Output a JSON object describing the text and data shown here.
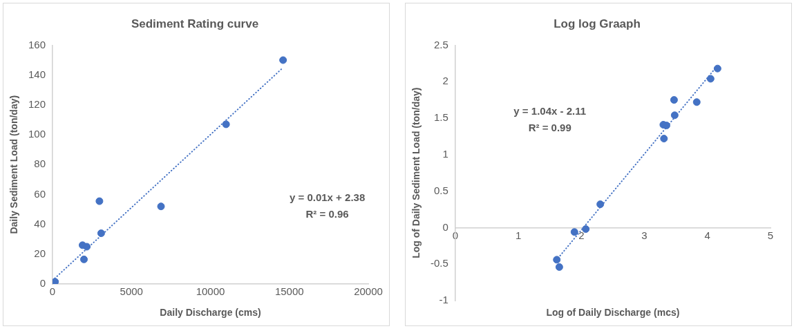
{
  "chart_data": [
    {
      "type": "scatter",
      "title": "Sediment Rating curve",
      "xlabel": "Daily Discharge (cms)",
      "ylabel": "Daily Sediment Load (ton/day)",
      "xlim": [
        0,
        20000
      ],
      "xticks": [
        0,
        5000,
        10000,
        15000,
        20000
      ],
      "ylim": [
        0,
        160
      ],
      "yticks": [
        0,
        20,
        40,
        60,
        80,
        100,
        120,
        140,
        160
      ],
      "grid": false,
      "legend": false,
      "series": [
        {
          "type": "scatter",
          "color": "#4472c4",
          "marker": "circle",
          "x": [
            160,
            1900,
            2170,
            1990,
            2970,
            3080,
            6870,
            10990,
            14600
          ],
          "values": [
            1.5,
            26,
            25,
            16.5,
            55.5,
            34,
            52,
            107,
            150
          ]
        },
        {
          "type": "line",
          "color": "#4472c4",
          "marker": "none",
          "line_style": "dotted",
          "x": [
            0,
            14600
          ],
          "values": [
            2.4,
            145
          ]
        }
      ],
      "annotations": [
        "y = 0.01x + 2.38",
        "R² = 0.96"
      ]
    },
    {
      "type": "scatter",
      "title": "Log log Graaph",
      "xlabel": "Log of Daily Discharge (mcs)",
      "ylabel": "Log of Daily Sediment Load (ton/day)",
      "xlim": [
        0,
        5
      ],
      "xticks": [
        0,
        1,
        2,
        3,
        4,
        5
      ],
      "ylim": [
        -1,
        2.5
      ],
      "yticks": [
        -1,
        -0.5,
        0,
        0.5,
        1,
        1.5,
        2,
        2.5
      ],
      "grid": false,
      "legend": false,
      "series": [
        {
          "type": "scatter",
          "color": "#4472c4",
          "marker": "circle",
          "x": [
            1.61,
            1.65,
            1.89,
            2.07,
            2.3,
            3.3,
            3.35,
            3.31,
            3.47,
            3.48,
            3.83,
            4.05,
            4.16
          ],
          "values": [
            -0.44,
            -0.54,
            -0.06,
            -0.02,
            0.32,
            1.41,
            1.4,
            1.22,
            1.75,
            1.54,
            1.72,
            2.04,
            2.18
          ]
        },
        {
          "type": "line",
          "color": "#4472c4",
          "marker": "none",
          "line_style": "dotted",
          "x": [
            1.6,
            4.15
          ],
          "values": [
            -0.45,
            2.21
          ]
        }
      ],
      "annotations": [
        "y = 1.04x - 2.11",
        "R² = 0.99"
      ]
    }
  ]
}
